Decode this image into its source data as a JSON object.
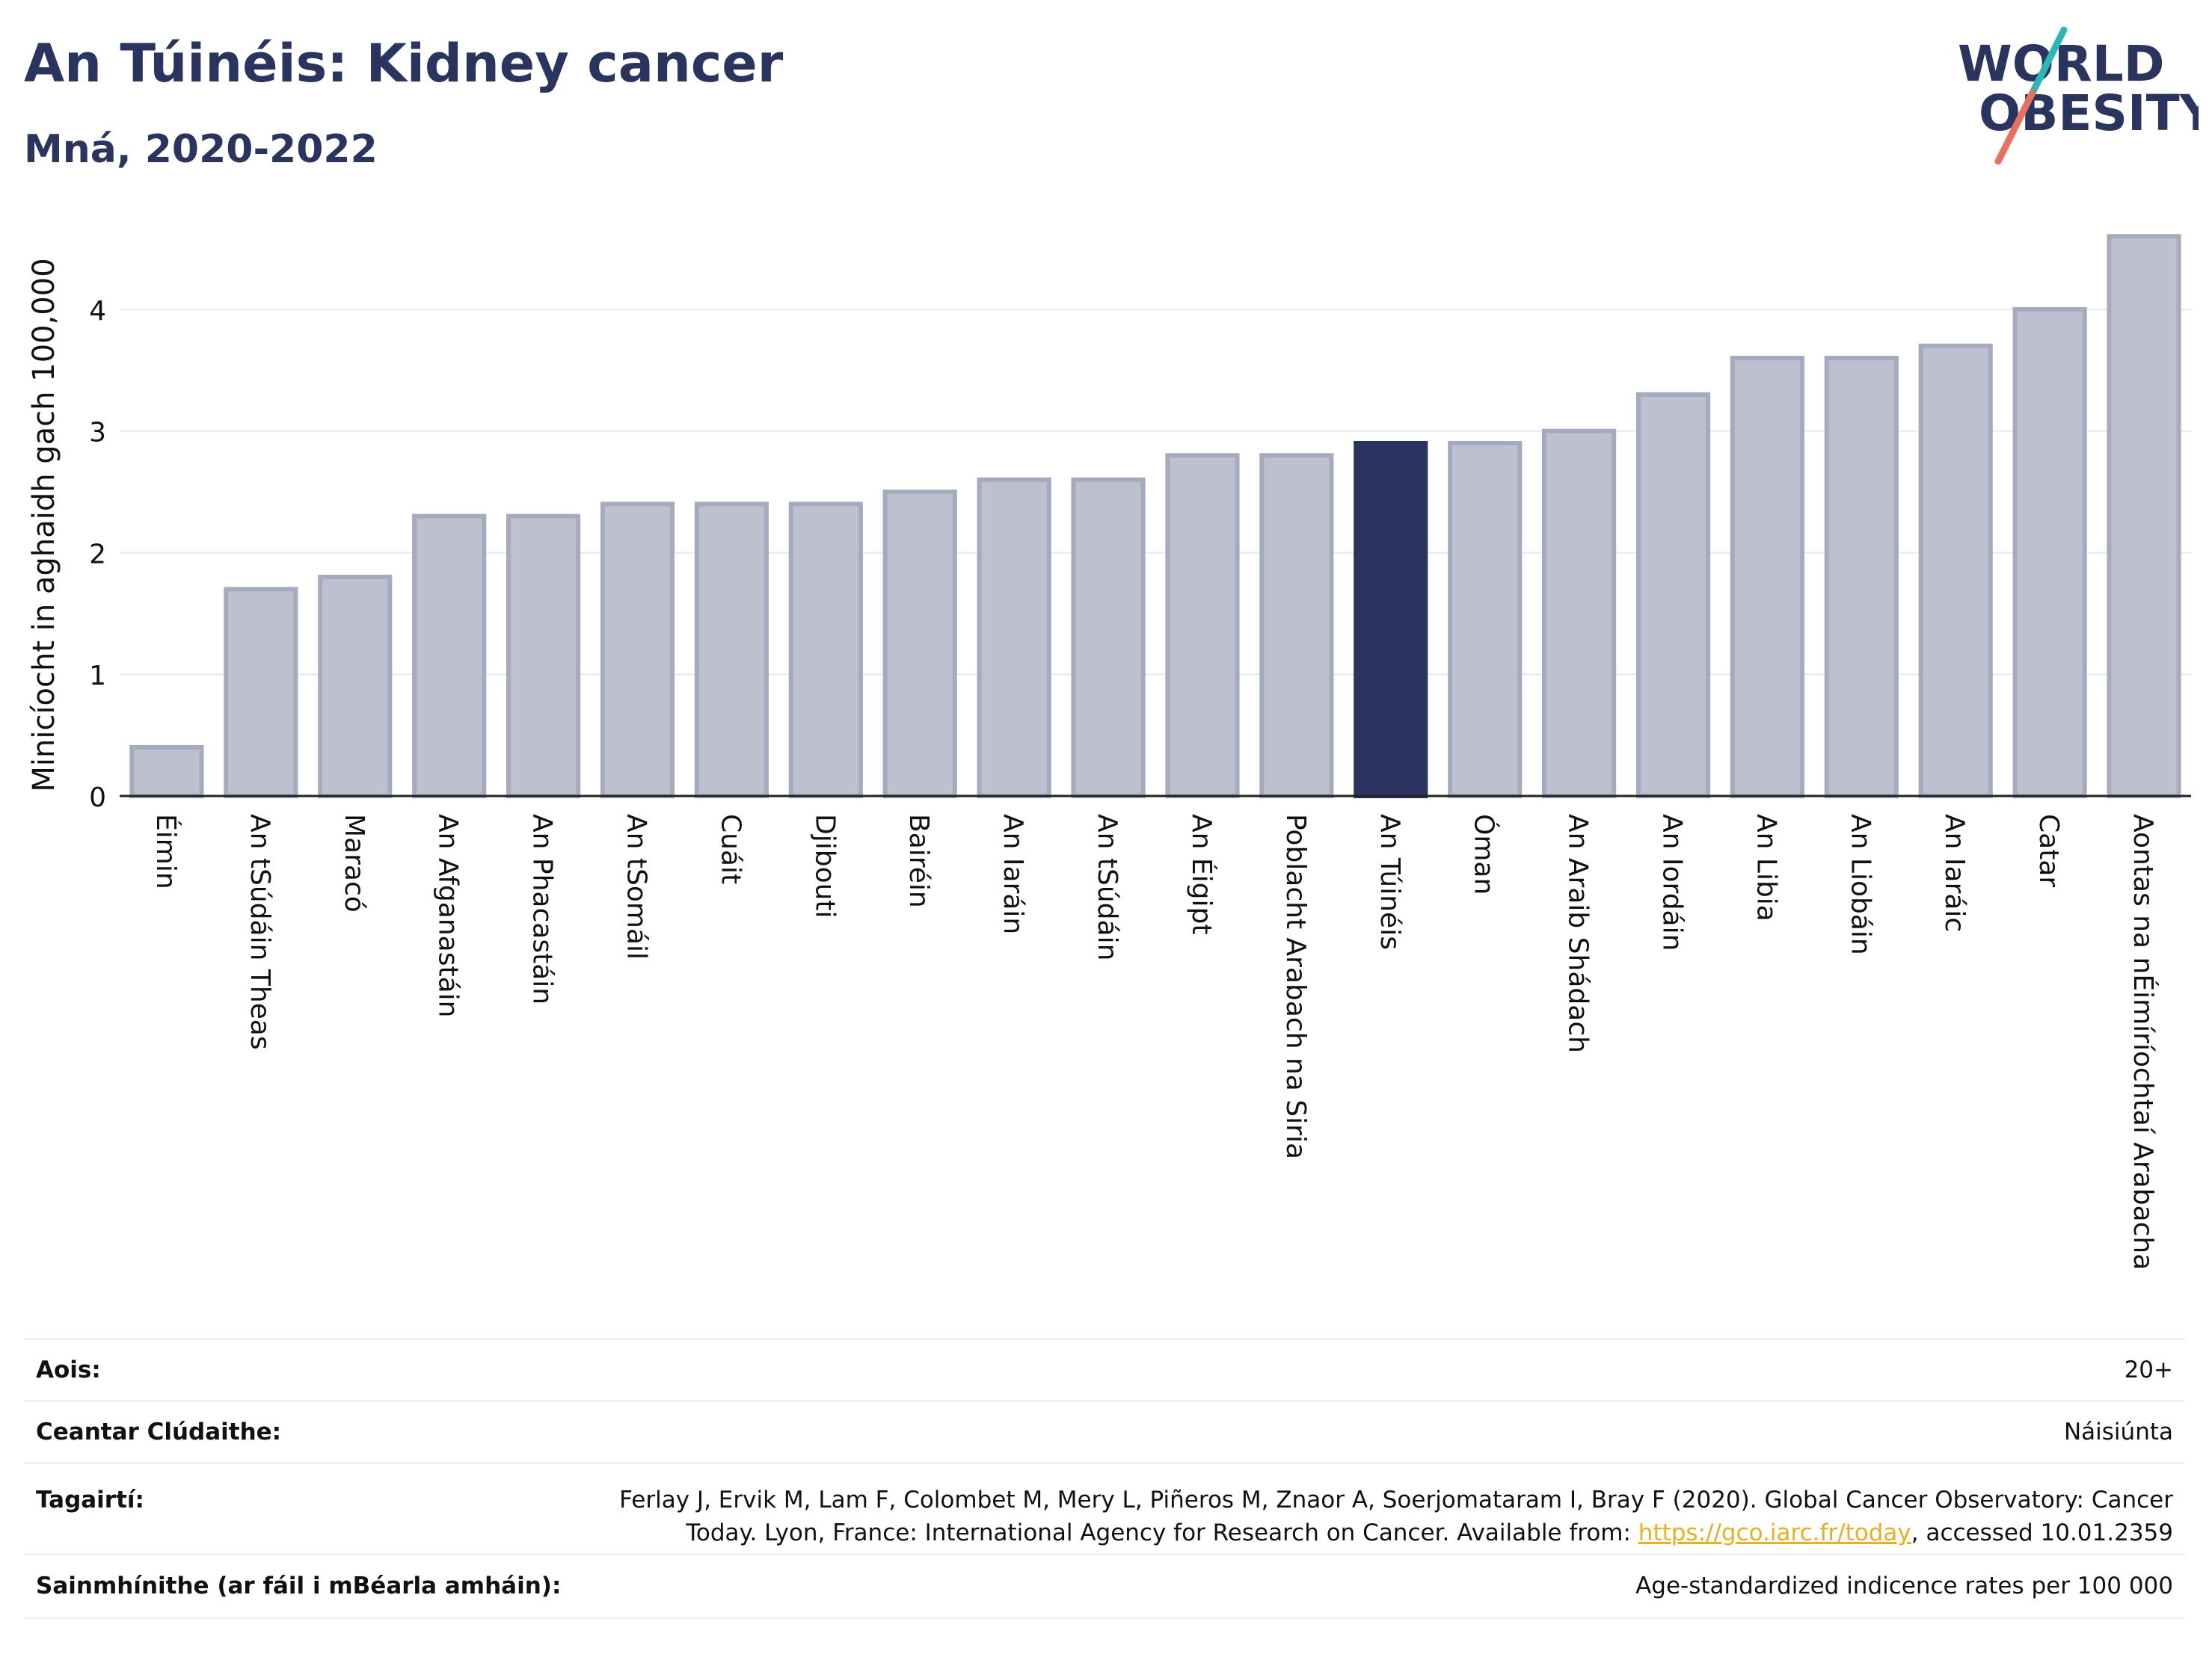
{
  "header": {
    "title": "An Túinéis: Kidney cancer",
    "subtitle": "Mná, 2020-2022"
  },
  "logo": {
    "line1": "WORLD",
    "line2": "OBESITY"
  },
  "chart_data": {
    "type": "bar",
    "ylabel": "Minicíocht in aghaidh gach 100,000",
    "xlabel": "",
    "ylim": [
      0,
      4.7
    ],
    "yticks": [
      0,
      1,
      2,
      3,
      4
    ],
    "grid": true,
    "highlight": "An Túinéis",
    "colors": {
      "bar": "#bcc0cf",
      "bar_edge": "#a5aabf",
      "highlight": "#2a355f"
    },
    "categories": [
      "Éimin",
      "An tSúdáin Theas",
      "Maracó",
      "An Afganastáin",
      "An Phacastáin",
      "An tSomáil",
      "Cuáit",
      "Djibouti",
      "Bairéin",
      "An Iaráin",
      "An tSúdáin",
      "An Éigipt",
      "Poblacht Arabach na Siria",
      "An Túinéis",
      "Óman",
      "An Araib Shádach",
      "An Iordáin",
      "An Libia",
      "An Liobáin",
      "An Iaráic",
      "Catar",
      "Aontas na nÉimíríochtaí Arabacha"
    ],
    "values": [
      0.4,
      1.7,
      1.8,
      2.3,
      2.3,
      2.4,
      2.4,
      2.4,
      2.5,
      2.6,
      2.6,
      2.8,
      2.8,
      2.9,
      2.9,
      3.0,
      3.3,
      3.6,
      3.6,
      3.7,
      4.0,
      4.6
    ]
  },
  "info": {
    "age_label": "Aois:",
    "age_value": "20+",
    "area_label": "Ceantar Clúdaithe:",
    "area_value": "Náisiúnta",
    "ref_label": "Tagairtí:",
    "ref_line1": "Ferlay J, Ervik M, Lam F, Colombet M, Mery L, Piñeros M, Znaor A, Soerjomataram I, Bray F (2020). Global Cancer Observatory: Cancer",
    "ref_line2_pre": "Today. Lyon, France: International Agency for Research on Cancer. Available from: ",
    "ref_link": "https://gco.iarc.fr/today",
    "ref_line2_post": ", accessed 10.01.2359",
    "def_label": "Sainmhínithe (ar fáil i mBéarla amháin):",
    "def_value": "Age-standardized indicence rates per 100 000"
  }
}
